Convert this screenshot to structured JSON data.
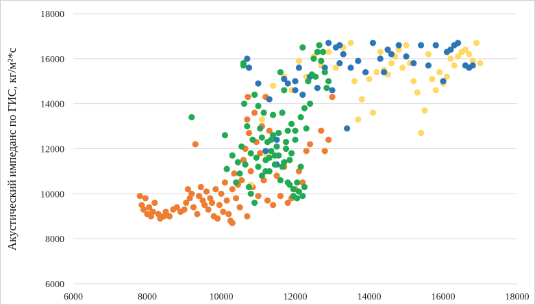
{
  "chart_data": {
    "type": "scatter",
    "title": "",
    "xlabel": "",
    "ylabel": "Акустический импеданс по ГИС, кг/м²*с",
    "xlim": [
      6000,
      18000
    ],
    "ylim": [
      6000,
      18000
    ],
    "xticks": [
      "6000",
      "8000",
      "10000",
      "12000",
      "14000",
      "16000",
      "18000"
    ],
    "yticks": [
      "6000",
      "8000",
      "10000",
      "12000",
      "14000",
      "16000",
      "18000"
    ],
    "grid": "horizontal",
    "legend": "none",
    "series": [
      {
        "color": "#ed7d31",
        "points": [
          [
            7800,
            9900
          ],
          [
            7850,
            9500
          ],
          [
            7900,
            9300
          ],
          [
            7950,
            9800
          ],
          [
            8000,
            9100
          ],
          [
            8050,
            9400
          ],
          [
            8100,
            9000
          ],
          [
            8150,
            9200
          ],
          [
            8200,
            9600
          ],
          [
            8300,
            9100
          ],
          [
            8350,
            8900
          ],
          [
            8450,
            9000
          ],
          [
            8500,
            9200
          ],
          [
            8600,
            9000
          ],
          [
            8700,
            9300
          ],
          [
            8800,
            9400
          ],
          [
            8900,
            9200
          ],
          [
            9000,
            9300
          ],
          [
            9050,
            9600
          ],
          [
            9100,
            10200
          ],
          [
            9150,
            9800
          ],
          [
            9200,
            10000
          ],
          [
            9250,
            9400
          ],
          [
            9300,
            12200
          ],
          [
            9350,
            9100
          ],
          [
            9400,
            9900
          ],
          [
            9450,
            10300
          ],
          [
            9500,
            9700
          ],
          [
            9550,
            9500
          ],
          [
            9600,
            10100
          ],
          [
            9650,
            9300
          ],
          [
            9700,
            9800
          ],
          [
            9750,
            9600
          ],
          [
            9800,
            9000
          ],
          [
            9850,
            10200
          ],
          [
            9900,
            8900
          ],
          [
            9950,
            9500
          ],
          [
            10000,
            10000
          ],
          [
            10050,
            9200
          ],
          [
            10100,
            10500
          ],
          [
            10150,
            9700
          ],
          [
            10200,
            9100
          ],
          [
            10250,
            8800
          ],
          [
            10300,
            10200
          ],
          [
            10350,
            10900
          ],
          [
            10400,
            9800
          ],
          [
            10450,
            10400
          ],
          [
            10500,
            9400
          ],
          [
            10550,
            10600
          ],
          [
            10600,
            11500
          ],
          [
            10650,
            12000
          ],
          [
            10700,
            13300
          ],
          [
            10720,
            14300
          ],
          [
            10750,
            12700
          ],
          [
            10800,
            11000
          ],
          [
            10850,
            10300
          ],
          [
            10900,
            13600
          ],
          [
            10950,
            12300
          ],
          [
            11000,
            9900
          ],
          [
            11050,
            11800
          ],
          [
            11100,
            13000
          ],
          [
            11150,
            10600
          ],
          [
            11200,
            14300
          ],
          [
            11250,
            9700
          ],
          [
            11300,
            12800
          ],
          [
            11400,
            9500
          ],
          [
            11500,
            10800
          ],
          [
            11600,
            9900
          ],
          [
            11700,
            11200
          ],
          [
            11800,
            9600
          ],
          [
            11900,
            9800
          ],
          [
            12000,
            10200
          ],
          [
            12100,
            11000
          ],
          [
            12200,
            10500
          ],
          [
            12300,
            11900
          ],
          [
            12400,
            12200
          ],
          [
            12700,
            12800
          ],
          [
            12800,
            11900
          ],
          [
            12900,
            12400
          ],
          [
            13000,
            14300
          ],
          [
            10300,
            8700
          ],
          [
            10700,
            9000
          ]
        ]
      },
      {
        "color": "#ffd966",
        "points": [
          [
            10800,
            10400
          ],
          [
            11100,
            13300
          ],
          [
            11200,
            11800
          ],
          [
            11400,
            14800
          ],
          [
            11700,
            15200
          ],
          [
            11900,
            14600
          ],
          [
            12100,
            15900
          ],
          [
            12300,
            15200
          ],
          [
            12500,
            16100
          ],
          [
            12700,
            15700
          ],
          [
            12900,
            16300
          ],
          [
            13100,
            15600
          ],
          [
            13300,
            16500
          ],
          [
            13500,
            16700
          ],
          [
            13600,
            15000
          ],
          [
            13700,
            13300
          ],
          [
            13800,
            14200
          ],
          [
            14000,
            15100
          ],
          [
            14100,
            13600
          ],
          [
            14200,
            15400
          ],
          [
            14300,
            16300
          ],
          [
            14400,
            15500
          ],
          [
            14500,
            15300
          ],
          [
            14600,
            15800
          ],
          [
            14700,
            16100
          ],
          [
            14800,
            16400
          ],
          [
            14900,
            15600
          ],
          [
            15000,
            16600
          ],
          [
            15100,
            15800
          ],
          [
            15200,
            15000
          ],
          [
            15300,
            14500
          ],
          [
            15400,
            12700
          ],
          [
            15500,
            13700
          ],
          [
            15600,
            16200
          ],
          [
            15700,
            15100
          ],
          [
            15800,
            14600
          ],
          [
            15900,
            15400
          ],
          [
            16000,
            14900
          ],
          [
            16100,
            15200
          ],
          [
            16200,
            16000
          ],
          [
            16300,
            15700
          ],
          [
            16400,
            16100
          ],
          [
            16500,
            16300
          ],
          [
            16600,
            16400
          ],
          [
            16700,
            16200
          ],
          [
            16800,
            15900
          ],
          [
            16900,
            16700
          ],
          [
            17000,
            15800
          ]
        ]
      },
      {
        "color": "#2e75b6",
        "points": [
          [
            10700,
            16000
          ],
          [
            10750,
            15600
          ],
          [
            11000,
            14900
          ],
          [
            11300,
            14200
          ],
          [
            11500,
            12400
          ],
          [
            11700,
            15100
          ],
          [
            11800,
            14900
          ],
          [
            12000,
            14600
          ],
          [
            12100,
            15600
          ],
          [
            12200,
            14400
          ],
          [
            12400,
            15200
          ],
          [
            12600,
            14700
          ],
          [
            12800,
            15600
          ],
          [
            12900,
            16700
          ],
          [
            13000,
            14600
          ],
          [
            13100,
            16500
          ],
          [
            13200,
            15800
          ],
          [
            13300,
            16200
          ],
          [
            13400,
            12900
          ],
          [
            13500,
            15600
          ],
          [
            13700,
            15900
          ],
          [
            13900,
            15400
          ],
          [
            14100,
            16700
          ],
          [
            14300,
            16000
          ],
          [
            14400,
            15400
          ],
          [
            14500,
            16400
          ],
          [
            14600,
            16200
          ],
          [
            14800,
            16600
          ],
          [
            15000,
            16100
          ],
          [
            15200,
            15800
          ],
          [
            15400,
            16600
          ],
          [
            15600,
            15700
          ],
          [
            15800,
            16600
          ],
          [
            16000,
            15000
          ],
          [
            16100,
            16300
          ],
          [
            16200,
            16400
          ],
          [
            16300,
            16600
          ],
          [
            16400,
            16700
          ],
          [
            16600,
            15700
          ],
          [
            16700,
            15600
          ],
          [
            16800,
            15700
          ],
          [
            11500,
            11300
          ],
          [
            11200,
            11900
          ],
          [
            12000,
            15000
          ],
          [
            13200,
            16600
          ]
        ]
      },
      {
        "color": "#22a954",
        "points": [
          [
            9200,
            13400
          ],
          [
            10100,
            12600
          ],
          [
            10150,
            11100
          ],
          [
            10300,
            11700
          ],
          [
            10400,
            10500
          ],
          [
            10450,
            11400
          ],
          [
            10500,
            10900
          ],
          [
            10550,
            12100
          ],
          [
            10600,
            15700
          ],
          [
            10620,
            14000
          ],
          [
            10650,
            11300
          ],
          [
            10700,
            13000
          ],
          [
            10750,
            10300
          ],
          [
            10800,
            11800
          ],
          [
            10850,
            12400
          ],
          [
            10900,
            14400
          ],
          [
            10950,
            11600
          ],
          [
            11000,
            11200
          ],
          [
            11050,
            12900
          ],
          [
            11100,
            10800
          ],
          [
            11150,
            13600
          ],
          [
            11200,
            11500
          ],
          [
            11250,
            12300
          ],
          [
            11300,
            11000
          ],
          [
            11350,
            11900
          ],
          [
            11400,
            12600
          ],
          [
            11450,
            11300
          ],
          [
            11500,
            12100
          ],
          [
            11550,
            11700
          ],
          [
            11600,
            10600
          ],
          [
            11650,
            13600
          ],
          [
            11700,
            11400
          ],
          [
            11750,
            12000
          ],
          [
            11800,
            12800
          ],
          [
            11850,
            10400
          ],
          [
            11900,
            11800
          ],
          [
            11950,
            10200
          ],
          [
            12000,
            12400
          ],
          [
            12050,
            9800
          ],
          [
            12100,
            10100
          ],
          [
            12150,
            11200
          ],
          [
            12200,
            9900
          ],
          [
            12250,
            10300
          ],
          [
            12300,
            12900
          ],
          [
            12400,
            14000
          ],
          [
            12450,
            15300
          ],
          [
            12500,
            16000
          ],
          [
            12600,
            16300
          ],
          [
            12650,
            16600
          ],
          [
            12700,
            15900
          ],
          [
            12750,
            16300
          ],
          [
            12800,
            15400
          ],
          [
            12850,
            14700
          ],
          [
            12900,
            15000
          ],
          [
            12200,
            16500
          ],
          [
            12150,
            13400
          ],
          [
            12000,
            12800
          ],
          [
            11600,
            15400
          ],
          [
            11700,
            14600
          ],
          [
            11400,
            13500
          ],
          [
            11300,
            11600
          ],
          [
            11200,
            11000
          ],
          [
            11100,
            12500
          ],
          [
            10900,
            9600
          ],
          [
            10800,
            10000
          ],
          [
            11800,
            10500
          ],
          [
            11650,
            11200
          ],
          [
            11450,
            11700
          ],
          [
            11350,
            12400
          ],
          [
            11550,
            12700
          ],
          [
            11750,
            12300
          ],
          [
            11850,
            11500
          ],
          [
            12050,
            10500
          ],
          [
            12350,
            15000
          ],
          [
            12550,
            15200
          ],
          [
            12250,
            13800
          ],
          [
            11950,
            9900
          ],
          [
            10600,
            15800
          ],
          [
            11000,
            13900
          ],
          [
            11900,
            13100
          ]
        ]
      }
    ]
  }
}
